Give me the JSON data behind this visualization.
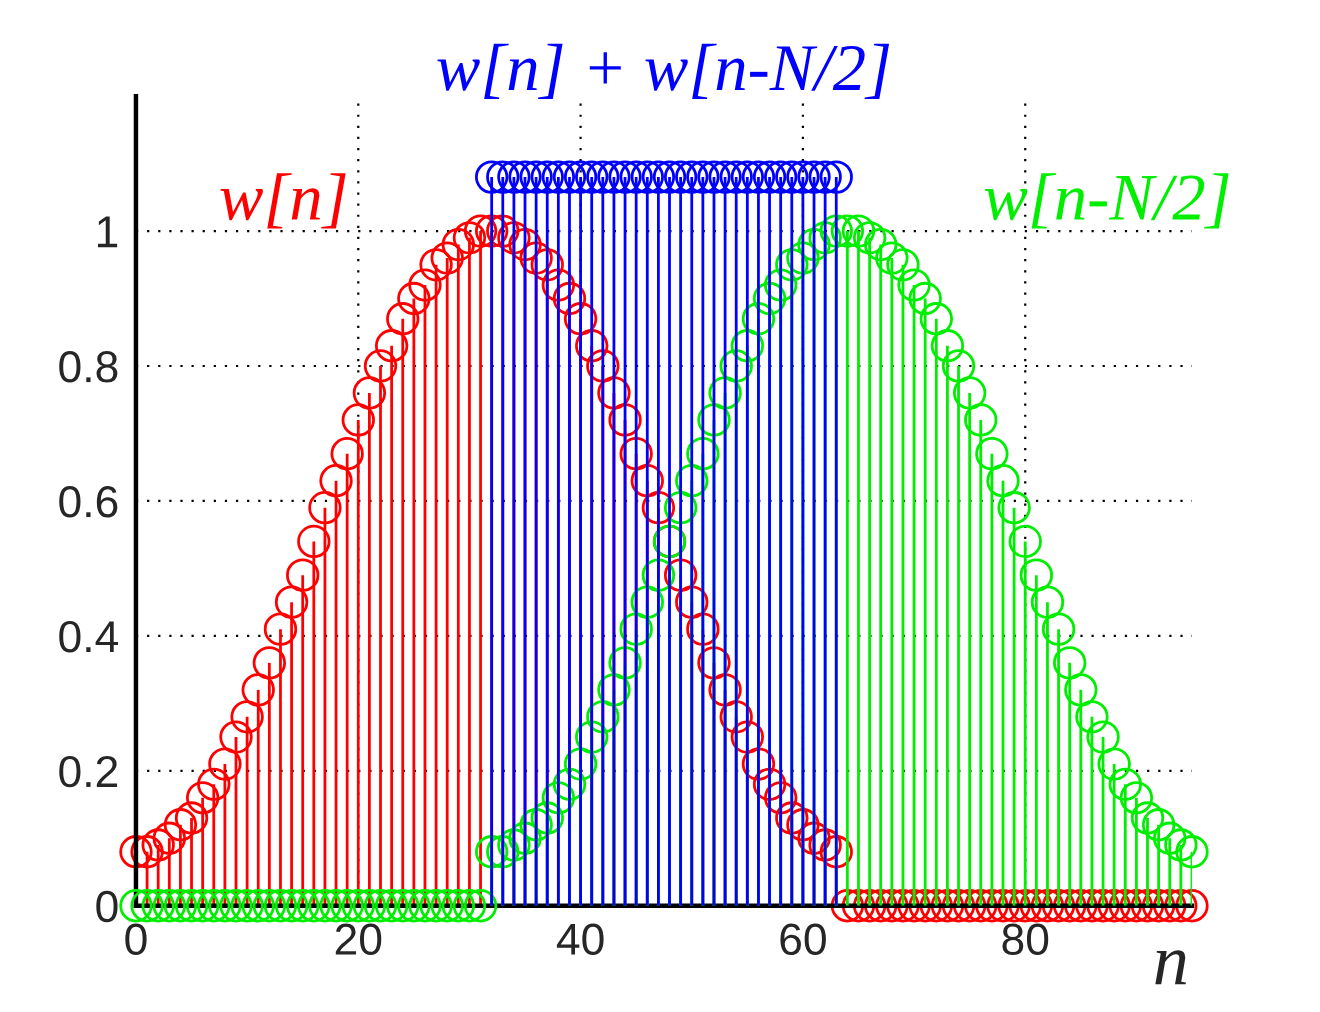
{
  "chart_data": {
    "type": "lollipop",
    "xlabel": "n",
    "xlim": [
      0,
      95
    ],
    "ylim": [
      0,
      1.2
    ],
    "xticks": [
      0,
      20,
      40,
      60,
      80
    ],
    "yticks": [
      0,
      0.2,
      0.4,
      0.6,
      0.8,
      1
    ],
    "grid": true,
    "marker": "circle",
    "legend": false,
    "series": [
      {
        "name": "w[n]",
        "color": "#ff0000",
        "x": [
          0,
          1,
          2,
          3,
          4,
          5,
          6,
          7,
          8,
          9,
          10,
          11,
          12,
          13,
          14,
          15,
          16,
          17,
          18,
          19,
          20,
          21,
          22,
          23,
          24,
          25,
          26,
          27,
          28,
          29,
          30,
          31,
          32,
          33,
          34,
          35,
          36,
          37,
          38,
          39,
          40,
          41,
          42,
          43,
          44,
          45,
          46,
          47,
          48,
          49,
          50,
          51,
          52,
          53,
          54,
          55,
          56,
          57,
          58,
          59,
          60,
          61,
          62,
          63,
          64,
          65,
          66,
          67,
          68,
          69,
          70,
          71,
          72,
          73,
          74,
          75,
          76,
          77,
          78,
          79,
          80,
          81,
          82,
          83,
          84,
          85,
          86,
          87,
          88,
          89,
          90,
          91,
          92,
          93,
          94,
          95
        ],
        "values": [
          0.08,
          0.08,
          0.09,
          0.1,
          0.12,
          0.13,
          0.16,
          0.18,
          0.21,
          0.25,
          0.28,
          0.32,
          0.36,
          0.41,
          0.45,
          0.49,
          0.54,
          0.59,
          0.63,
          0.67,
          0.72,
          0.76,
          0.8,
          0.83,
          0.87,
          0.9,
          0.92,
          0.95,
          0.96,
          0.98,
          0.99,
          1.0,
          1.0,
          1.0,
          0.99,
          0.98,
          0.96,
          0.95,
          0.92,
          0.9,
          0.87,
          0.83,
          0.8,
          0.76,
          0.72,
          0.67,
          0.63,
          0.59,
          0.54,
          0.49,
          0.45,
          0.41,
          0.36,
          0.32,
          0.28,
          0.25,
          0.21,
          0.18,
          0.16,
          0.13,
          0.12,
          0.1,
          0.09,
          0.08,
          0,
          0,
          0,
          0,
          0,
          0,
          0,
          0,
          0,
          0,
          0,
          0,
          0,
          0,
          0,
          0,
          0,
          0,
          0,
          0,
          0,
          0,
          0,
          0,
          0,
          0,
          0,
          0,
          0,
          0,
          0,
          0
        ]
      },
      {
        "name": "w[n-N/2]",
        "color": "#00ee00",
        "x": [
          0,
          1,
          2,
          3,
          4,
          5,
          6,
          7,
          8,
          9,
          10,
          11,
          12,
          13,
          14,
          15,
          16,
          17,
          18,
          19,
          20,
          21,
          22,
          23,
          24,
          25,
          26,
          27,
          28,
          29,
          30,
          31,
          32,
          33,
          34,
          35,
          36,
          37,
          38,
          39,
          40,
          41,
          42,
          43,
          44,
          45,
          46,
          47,
          48,
          49,
          50,
          51,
          52,
          53,
          54,
          55,
          56,
          57,
          58,
          59,
          60,
          61,
          62,
          63,
          64,
          65,
          66,
          67,
          68,
          69,
          70,
          71,
          72,
          73,
          74,
          75,
          76,
          77,
          78,
          79,
          80,
          81,
          82,
          83,
          84,
          85,
          86,
          87,
          88,
          89,
          90,
          91,
          92,
          93,
          94,
          95
        ],
        "values": [
          0,
          0,
          0,
          0,
          0,
          0,
          0,
          0,
          0,
          0,
          0,
          0,
          0,
          0,
          0,
          0,
          0,
          0,
          0,
          0,
          0,
          0,
          0,
          0,
          0,
          0,
          0,
          0,
          0,
          0,
          0,
          0,
          0.08,
          0.08,
          0.09,
          0.1,
          0.12,
          0.13,
          0.16,
          0.18,
          0.21,
          0.25,
          0.28,
          0.32,
          0.36,
          0.41,
          0.45,
          0.49,
          0.54,
          0.59,
          0.63,
          0.67,
          0.72,
          0.76,
          0.8,
          0.83,
          0.87,
          0.9,
          0.92,
          0.95,
          0.96,
          0.98,
          0.99,
          1.0,
          1.0,
          1.0,
          0.99,
          0.98,
          0.96,
          0.95,
          0.92,
          0.9,
          0.87,
          0.83,
          0.8,
          0.76,
          0.72,
          0.67,
          0.63,
          0.59,
          0.54,
          0.49,
          0.45,
          0.41,
          0.36,
          0.32,
          0.28,
          0.25,
          0.21,
          0.18,
          0.16,
          0.13,
          0.12,
          0.1,
          0.09,
          0.08
        ]
      },
      {
        "name": "w[n] + w[n-N/2]",
        "color": "#0000ff",
        "x": [
          32,
          33,
          34,
          35,
          36,
          37,
          38,
          39,
          40,
          41,
          42,
          43,
          44,
          45,
          46,
          47,
          48,
          49,
          50,
          51,
          52,
          53,
          54,
          55,
          56,
          57,
          58,
          59,
          60,
          61,
          62,
          63
        ],
        "values": [
          1.08,
          1.08,
          1.08,
          1.08,
          1.08,
          1.08,
          1.08,
          1.08,
          1.08,
          1.08,
          1.08,
          1.08,
          1.08,
          1.08,
          1.08,
          1.08,
          1.08,
          1.08,
          1.08,
          1.08,
          1.08,
          1.08,
          1.08,
          1.08,
          1.08,
          1.08,
          1.08,
          1.08,
          1.08,
          1.08,
          1.08,
          1.08
        ]
      }
    ]
  }
}
